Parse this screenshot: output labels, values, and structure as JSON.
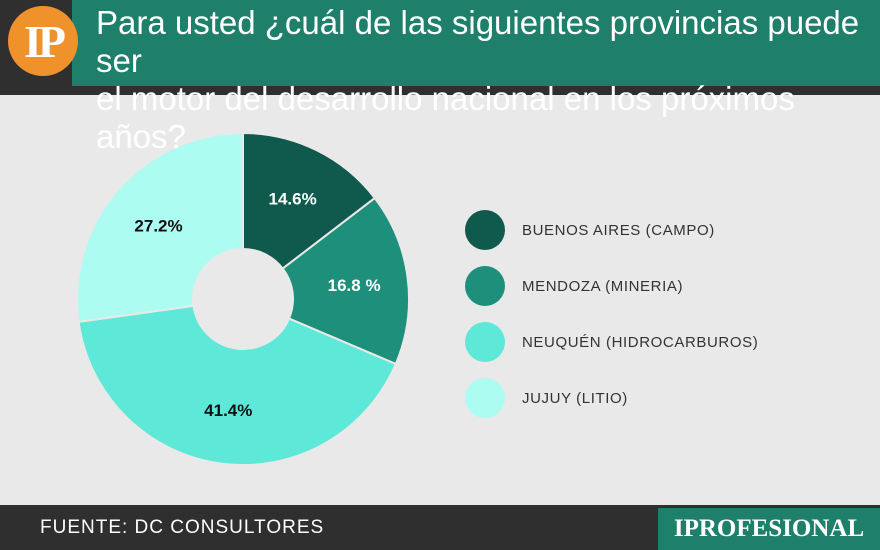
{
  "header": {
    "logo_text": "IP",
    "title_line1": "Para usted ¿cuál de las siguientes provincias puede ser",
    "title_line2": "el motor del desarrollo nacional en los próximos años?"
  },
  "chart_data": {
    "type": "pie",
    "donut": true,
    "title": "Para usted ¿cuál de las siguientes provincias puede ser el motor del desarrollo nacional en los próximos años?",
    "categories": [
      "BUENOS AIRES (CAMPO)",
      "MENDOZA (MINERIA)",
      "NEUQUÉN (HIDROCARBUROS)",
      "JUJUY (LITIO)"
    ],
    "values": [
      14.6,
      16.8,
      41.4,
      27.2
    ],
    "labels": [
      "14.6%",
      "16.8 %",
      "41.4%",
      "27.2%"
    ],
    "colors": [
      "#0f5a4c",
      "#1e8f7a",
      "#5ee8d8",
      "#adfcf1"
    ],
    "legend_position": "right"
  },
  "footer": {
    "source": "FUENTE: DC CONSULTORES",
    "brand": "IPROFESIONAL"
  }
}
